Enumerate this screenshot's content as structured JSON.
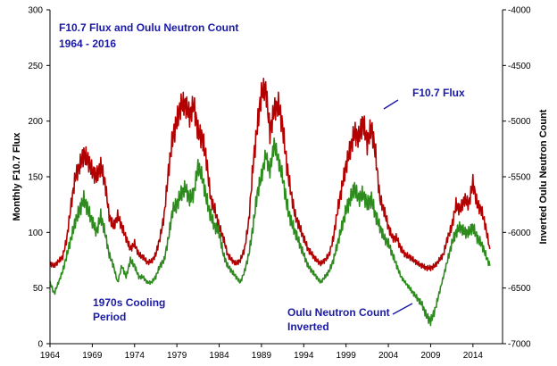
{
  "chart_data": {
    "type": "line",
    "title": "F10.7 Flux and Oulu Neutron Count",
    "subtitle": "1964 - 2016",
    "ylabel": "Monthly F10.7 Flux",
    "y2label": "Inverted Oulu Neutron Count",
    "xlim": [
      1964,
      2017.5
    ],
    "ylim": [
      0,
      300
    ],
    "y2lim": [
      -7000,
      -4000
    ],
    "xticks": [
      "1964",
      "1969",
      "1974",
      "1979",
      "1984",
      "1989",
      "1994",
      "1999",
      "2004",
      "2009",
      "2014"
    ],
    "yticks": [
      "0",
      "50",
      "100",
      "150",
      "200",
      "250",
      "300"
    ],
    "y2ticks": [
      "-4000",
      "-4500",
      "-5000",
      "-5500",
      "-6000",
      "-6500",
      "-7000"
    ],
    "grid": false,
    "series": [
      {
        "name": "F10.7 Flux",
        "color": "#b30000",
        "axis": "left",
        "x": [
          1964.0,
          1964.5,
          1965.0,
          1965.5,
          1966.0,
          1966.5,
          1967.0,
          1967.5,
          1968.0,
          1968.5,
          1969.0,
          1969.5,
          1970.0,
          1970.5,
          1971.0,
          1971.5,
          1972.0,
          1972.5,
          1973.0,
          1973.5,
          1974.0,
          1974.5,
          1975.0,
          1975.5,
          1976.0,
          1976.5,
          1977.0,
          1977.5,
          1978.0,
          1978.5,
          1979.0,
          1979.5,
          1980.0,
          1980.5,
          1981.0,
          1981.5,
          1982.0,
          1982.5,
          1983.0,
          1983.5,
          1984.0,
          1984.5,
          1985.0,
          1985.5,
          1986.0,
          1986.5,
          1987.0,
          1987.5,
          1988.0,
          1988.5,
          1989.0,
          1989.5,
          1990.0,
          1990.5,
          1991.0,
          1991.5,
          1992.0,
          1992.5,
          1993.0,
          1993.5,
          1994.0,
          1994.5,
          1995.0,
          1995.5,
          1996.0,
          1996.5,
          1997.0,
          1997.5,
          1998.0,
          1998.5,
          1999.0,
          1999.5,
          2000.0,
          2000.5,
          2001.0,
          2001.5,
          2002.0,
          2002.5,
          2003.0,
          2003.5,
          2004.0,
          2004.5,
          2005.0,
          2005.5,
          2006.0,
          2006.5,
          2007.0,
          2007.5,
          2008.0,
          2008.5,
          2009.0,
          2009.5,
          2010.0,
          2010.5,
          2011.0,
          2011.5,
          2012.0,
          2012.5,
          2013.0,
          2013.5,
          2014.0,
          2014.5,
          2015.0,
          2015.5,
          2016.0
        ],
        "values": [
          72,
          70,
          74,
          78,
          95,
          125,
          150,
          160,
          170,
          165,
          155,
          150,
          160,
          145,
          115,
          105,
          115,
          105,
          95,
          85,
          90,
          80,
          78,
          73,
          74,
          80,
          95,
          115,
          155,
          185,
          200,
          215,
          215,
          205,
          215,
          190,
          185,
          165,
          130,
          120,
          105,
          95,
          80,
          75,
          72,
          75,
          85,
          110,
          160,
          195,
          225,
          230,
          190,
          210,
          215,
          195,
          160,
          135,
          115,
          105,
          95,
          85,
          80,
          75,
          72,
          75,
          80,
          95,
          120,
          140,
          160,
          175,
          190,
          185,
          200,
          180,
          195,
          170,
          130,
          120,
          105,
          95,
          95,
          85,
          80,
          78,
          75,
          72,
          70,
          68,
          68,
          70,
          75,
          80,
          95,
          105,
          125,
          120,
          130,
          125,
          145,
          125,
          120,
          105,
          85
        ]
      },
      {
        "name": "Oulu Neutron Count Inverted",
        "color": "#2e8b1e",
        "axis": "right",
        "x": [
          1964.0,
          1964.5,
          1965.0,
          1965.5,
          1966.0,
          1966.5,
          1967.0,
          1967.5,
          1968.0,
          1968.5,
          1969.0,
          1969.5,
          1970.0,
          1970.5,
          1971.0,
          1971.5,
          1972.0,
          1972.5,
          1973.0,
          1973.5,
          1974.0,
          1974.5,
          1975.0,
          1975.5,
          1976.0,
          1976.5,
          1977.0,
          1977.5,
          1978.0,
          1978.5,
          1979.0,
          1979.5,
          1980.0,
          1980.5,
          1981.0,
          1981.5,
          1982.0,
          1982.5,
          1983.0,
          1983.5,
          1984.0,
          1984.5,
          1985.0,
          1985.5,
          1986.0,
          1986.5,
          1987.0,
          1987.5,
          1988.0,
          1988.5,
          1989.0,
          1989.5,
          1990.0,
          1990.5,
          1991.0,
          1991.5,
          1992.0,
          1992.5,
          1993.0,
          1993.5,
          1994.0,
          1994.5,
          1995.0,
          1995.5,
          1996.0,
          1996.5,
          1997.0,
          1997.5,
          1998.0,
          1998.5,
          1999.0,
          1999.5,
          2000.0,
          2000.5,
          2001.0,
          2001.5,
          2002.0,
          2002.5,
          2003.0,
          2003.5,
          2004.0,
          2004.5,
          2005.0,
          2005.5,
          2006.0,
          2006.5,
          2007.0,
          2007.5,
          2008.0,
          2008.5,
          2009.0,
          2009.5,
          2010.0,
          2010.5,
          2011.0,
          2011.5,
          2012.0,
          2012.5,
          2013.0,
          2013.5,
          2014.0,
          2014.5,
          2015.0,
          2015.5,
          2016.0
        ],
        "values": [
          -6450,
          -6550,
          -6450,
          -6350,
          -6200,
          -6050,
          -5900,
          -5800,
          -5700,
          -5800,
          -5900,
          -6000,
          -5850,
          -6000,
          -6200,
          -6300,
          -6450,
          -6300,
          -6400,
          -6250,
          -6300,
          -6400,
          -6400,
          -6450,
          -6450,
          -6400,
          -6300,
          -6250,
          -6050,
          -5800,
          -5750,
          -5650,
          -5600,
          -5700,
          -5650,
          -5400,
          -5500,
          -5700,
          -5850,
          -5950,
          -6000,
          -6200,
          -6300,
          -6350,
          -6400,
          -6450,
          -6350,
          -6200,
          -5950,
          -5650,
          -5500,
          -5300,
          -5450,
          -5200,
          -5350,
          -5500,
          -5750,
          -5900,
          -6000,
          -6100,
          -6200,
          -6300,
          -6350,
          -6400,
          -6450,
          -6400,
          -6350,
          -6250,
          -6100,
          -5950,
          -5800,
          -5700,
          -5600,
          -5700,
          -5650,
          -5750,
          -5700,
          -5850,
          -5950,
          -6050,
          -6100,
          -6200,
          -6300,
          -6400,
          -6450,
          -6500,
          -6550,
          -6600,
          -6650,
          -6750,
          -6800,
          -6700,
          -6550,
          -6400,
          -6250,
          -6100,
          -6000,
          -5950,
          -6000,
          -6000,
          -5950,
          -6050,
          -6100,
          -6200,
          -6300
        ]
      }
    ]
  },
  "annotations": {
    "flux_label": "F10.7 Flux",
    "cooling_label_1": "1970s Cooling",
    "cooling_label_2": "Period",
    "oulu_label_1": "Oulu Neutron Count",
    "oulu_label_2": "Inverted"
  }
}
